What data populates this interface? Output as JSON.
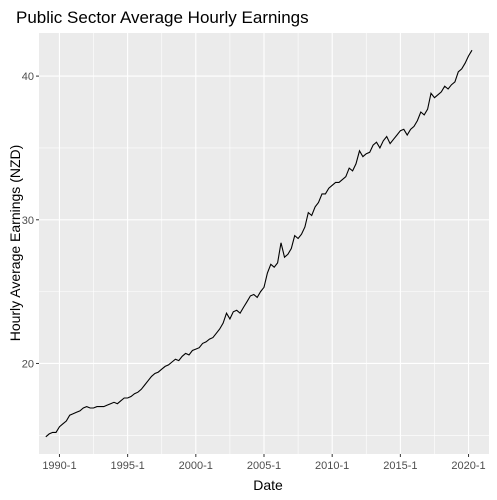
{
  "chart_data": {
    "type": "line",
    "title": "Public Sector Average Hourly Earnings",
    "xlabel": "Date",
    "ylabel": "Hourly Average Earnings (NZD)",
    "x_ticks": [
      "1990-1",
      "1995-1",
      "2000-1",
      "2005-1",
      "2010-1",
      "2015-1",
      "2020-1"
    ],
    "y_ticks": [
      20,
      30,
      40
    ],
    "xlim": [
      1988.5,
      2021.5
    ],
    "ylim": [
      13.7,
      43.0
    ],
    "grid": true,
    "colors": {
      "panel_bg": "#ebebeb",
      "grid": "#ffffff",
      "line": "#000000"
    },
    "series": [
      {
        "points": [
          [
            1989.0,
            14.9
          ],
          [
            1989.25,
            15.1
          ],
          [
            1989.5,
            15.2
          ],
          [
            1989.75,
            15.2
          ],
          [
            1990.0,
            15.6
          ],
          [
            1990.25,
            15.8
          ],
          [
            1990.5,
            16.0
          ],
          [
            1990.75,
            16.4
          ],
          [
            1991.0,
            16.5
          ],
          [
            1991.25,
            16.6
          ],
          [
            1991.5,
            16.7
          ],
          [
            1991.75,
            16.9
          ],
          [
            1992.0,
            17.0
          ],
          [
            1992.25,
            16.9
          ],
          [
            1992.5,
            16.9
          ],
          [
            1992.75,
            17.0
          ],
          [
            1993.0,
            17.0
          ],
          [
            1993.25,
            17.0
          ],
          [
            1993.5,
            17.1
          ],
          [
            1993.75,
            17.2
          ],
          [
            1994.0,
            17.3
          ],
          [
            1994.25,
            17.2
          ],
          [
            1994.5,
            17.4
          ],
          [
            1994.75,
            17.6
          ],
          [
            1995.0,
            17.6
          ],
          [
            1995.25,
            17.7
          ],
          [
            1995.5,
            17.9
          ],
          [
            1995.75,
            18.0
          ],
          [
            1996.0,
            18.2
          ],
          [
            1996.25,
            18.5
          ],
          [
            1996.5,
            18.8
          ],
          [
            1996.75,
            19.1
          ],
          [
            1997.0,
            19.3
          ],
          [
            1997.25,
            19.4
          ],
          [
            1997.5,
            19.6
          ],
          [
            1997.75,
            19.8
          ],
          [
            1998.0,
            19.9
          ],
          [
            1998.25,
            20.1
          ],
          [
            1998.5,
            20.3
          ],
          [
            1998.75,
            20.2
          ],
          [
            1999.0,
            20.5
          ],
          [
            1999.25,
            20.7
          ],
          [
            1999.5,
            20.6
          ],
          [
            1999.75,
            20.9
          ],
          [
            2000.0,
            21.0
          ],
          [
            2000.25,
            21.1
          ],
          [
            2000.5,
            21.4
          ],
          [
            2000.75,
            21.5
          ],
          [
            2001.0,
            21.7
          ],
          [
            2001.25,
            21.8
          ],
          [
            2001.5,
            22.1
          ],
          [
            2001.75,
            22.4
          ],
          [
            2002.0,
            22.8
          ],
          [
            2002.25,
            23.5
          ],
          [
            2002.5,
            23.1
          ],
          [
            2002.75,
            23.6
          ],
          [
            2003.0,
            23.7
          ],
          [
            2003.25,
            23.5
          ],
          [
            2003.5,
            23.9
          ],
          [
            2003.75,
            24.3
          ],
          [
            2004.0,
            24.7
          ],
          [
            2004.25,
            24.8
          ],
          [
            2004.5,
            24.6
          ],
          [
            2004.75,
            25.0
          ],
          [
            2005.0,
            25.3
          ],
          [
            2005.25,
            26.3
          ],
          [
            2005.5,
            26.9
          ],
          [
            2005.75,
            26.7
          ],
          [
            2006.0,
            27.0
          ],
          [
            2006.25,
            28.4
          ],
          [
            2006.5,
            27.4
          ],
          [
            2006.75,
            27.6
          ],
          [
            2007.0,
            28.0
          ],
          [
            2007.25,
            28.9
          ],
          [
            2007.5,
            28.7
          ],
          [
            2007.75,
            29.0
          ],
          [
            2008.0,
            29.5
          ],
          [
            2008.25,
            30.5
          ],
          [
            2008.5,
            30.3
          ],
          [
            2008.75,
            30.9
          ],
          [
            2009.0,
            31.2
          ],
          [
            2009.25,
            31.8
          ],
          [
            2009.5,
            31.8
          ],
          [
            2009.75,
            32.2
          ],
          [
            2010.0,
            32.4
          ],
          [
            2010.25,
            32.6
          ],
          [
            2010.5,
            32.6
          ],
          [
            2010.75,
            32.8
          ],
          [
            2011.0,
            33.0
          ],
          [
            2011.25,
            33.6
          ],
          [
            2011.5,
            33.4
          ],
          [
            2011.75,
            33.9
          ],
          [
            2012.0,
            34.8
          ],
          [
            2012.25,
            34.4
          ],
          [
            2012.5,
            34.6
          ],
          [
            2012.75,
            34.7
          ],
          [
            2013.0,
            35.2
          ],
          [
            2013.25,
            35.4
          ],
          [
            2013.5,
            35.0
          ],
          [
            2013.75,
            35.5
          ],
          [
            2014.0,
            35.8
          ],
          [
            2014.25,
            35.3
          ],
          [
            2014.5,
            35.6
          ],
          [
            2014.75,
            35.9
          ],
          [
            2015.0,
            36.2
          ],
          [
            2015.25,
            36.3
          ],
          [
            2015.5,
            35.9
          ],
          [
            2015.75,
            36.3
          ],
          [
            2016.0,
            36.5
          ],
          [
            2016.25,
            36.9
          ],
          [
            2016.5,
            37.5
          ],
          [
            2016.75,
            37.3
          ],
          [
            2017.0,
            37.7
          ],
          [
            2017.25,
            38.8
          ],
          [
            2017.5,
            38.5
          ],
          [
            2017.75,
            38.7
          ],
          [
            2018.0,
            38.9
          ],
          [
            2018.25,
            39.3
          ],
          [
            2018.5,
            39.1
          ],
          [
            2018.75,
            39.4
          ],
          [
            2019.0,
            39.6
          ],
          [
            2019.25,
            40.3
          ],
          [
            2019.5,
            40.5
          ],
          [
            2019.75,
            40.9
          ],
          [
            2020.0,
            41.4
          ],
          [
            2020.25,
            41.8
          ]
        ]
      }
    ]
  }
}
